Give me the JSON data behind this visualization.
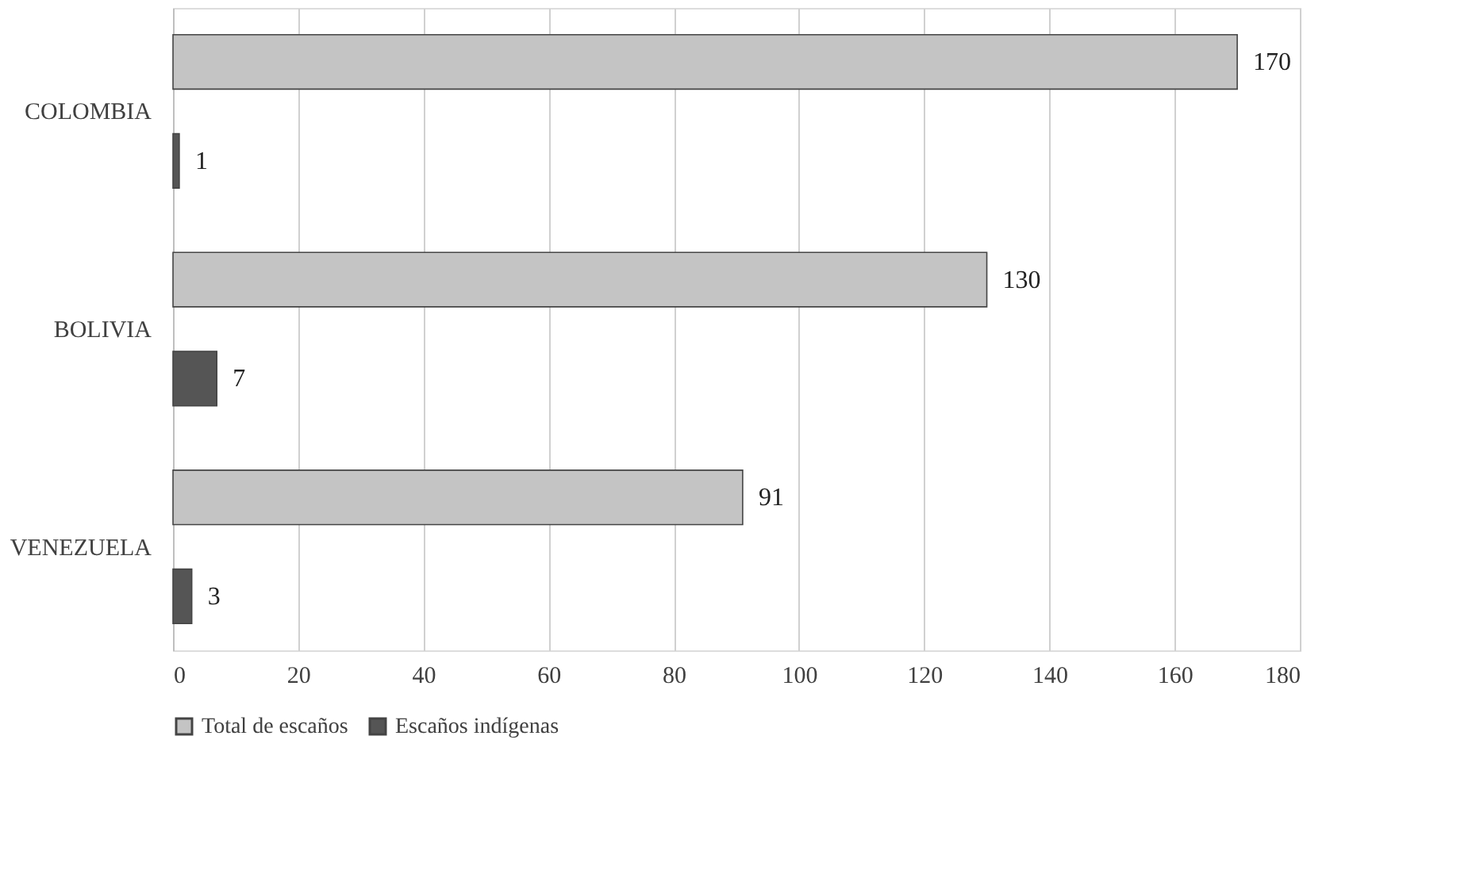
{
  "chart_data": {
    "type": "bar",
    "orientation": "horizontal",
    "categories": [
      "COLOMBIA",
      "BOLIVIA",
      "VENEZUELA"
    ],
    "series": [
      {
        "name": "Total de escaños",
        "color": "#c4c4c4",
        "values": [
          170,
          130,
          91
        ]
      },
      {
        "name": "Escaños indígenas",
        "color": "#555555",
        "values": [
          1,
          7,
          3
        ]
      }
    ],
    "xlim": [
      0,
      180
    ],
    "xticks": [
      0,
      20,
      40,
      60,
      80,
      100,
      120,
      140,
      160,
      180
    ],
    "grid": "x",
    "legend": "bottom",
    "data_labels": true
  }
}
